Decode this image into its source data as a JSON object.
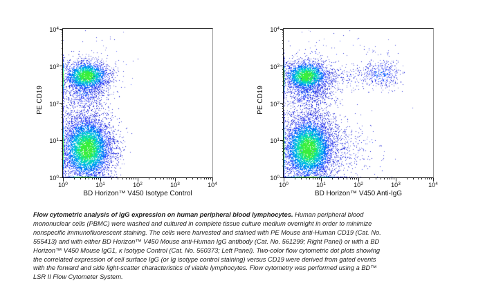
{
  "caption": {
    "title": "Flow cytometric analysis of IgG expression on human peripheral blood lymphocytes.",
    "body": " Human peripheral blood mononuclear cells (PBMC) were washed and cultured in complete tissue culture medium overnight in order to minimize nonspecific immunofluorescent staining. The cells were harvested and stained with PE Mouse anti-Human CD19 (Cat. No. 555413) and with either BD Horizon™ V450 Mouse anti-Human IgG antibody (Cat. No. 561299; Right Panel) or with a BD Horizon™ V450  Mouse IgG1, κ Isotype Control (Cat. No. 560373; Left Panel). Two-color flow cytometric dot plots showing the correlated expression of cell surface IgG (or Ig isotype control staining) versus CD19 were derived from gated events with the forward and side light-scatter characteristics of viable lymphocytes. Flow cytometry was performed using a BD™ LSR II Flow Cytometer System."
  },
  "chart_data": {
    "type": "scatter",
    "subtype": "flow-cytometry-density-dot-plot",
    "grid": false,
    "legend": false,
    "palette": {
      "density_ramp": [
        "#0009d0",
        "#2438ff",
        "#0077fa",
        "#00b8e8",
        "#0ce0a8",
        "#39ef3c"
      ],
      "axis_color": "#111111",
      "frame_right_color": "#9a9a9a"
    },
    "axis": {
      "scale": "log10",
      "x_range": [
        1,
        10000
      ],
      "y_range": [
        1,
        10000
      ],
      "tick_exponents": [
        0,
        1,
        2,
        3,
        4
      ],
      "tick_label_base": "10"
    },
    "plots": [
      {
        "id": "isotype-control",
        "panel": "Left Panel",
        "xlabel": "BD Horizon™ V450 Isotype Control",
        "ylabel": "PE CD19",
        "populations": [
          {
            "name": "inter-population-scatter",
            "n": 260,
            "cx": 0.5,
            "cy": 1.6,
            "sx": 0.3,
            "sy": 0.38,
            "peak": 0
          },
          {
            "name": "stray-events",
            "n": 18,
            "cx": 1.2,
            "cy": 2.9,
            "sx": 0.55,
            "sy": 0.55,
            "peak": 0
          },
          {
            "name": "upper-sparse",
            "n": 25,
            "cx": 0.8,
            "cy": 3.3,
            "sx": 0.45,
            "sy": 0.3,
            "peak": 0
          },
          {
            "name": "b-cell-lower-tail",
            "n": 650,
            "cx": 0.55,
            "cy": 2.33,
            "sx": 0.27,
            "sy": 0.27,
            "peak": 1
          },
          {
            "name": "b-tail-right",
            "n": 120,
            "cx": 0.9,
            "cy": 2.45,
            "sx": 0.3,
            "sy": 0.22,
            "peak": 0
          },
          {
            "name": "low-right-smear",
            "n": 200,
            "cx": 1.1,
            "cy": 0.85,
            "sx": 0.28,
            "sy": 0.4,
            "peak": 0
          },
          {
            "name": "cd19-neg-lymphocytes",
            "n": 6500,
            "cx": 0.63,
            "cy": 0.78,
            "sx": 0.33,
            "sy": 0.42,
            "peak": 5
          },
          {
            "name": "cd19-pos-b-cells",
            "n": 2600,
            "cx": 0.62,
            "cy": 2.74,
            "sx": 0.3,
            "sy": 0.2,
            "peak": 5
          },
          {
            "name": "axis-pileup-x0-b",
            "n": 320,
            "cx": -0.02,
            "cy": 2.7,
            "sx": 0.015,
            "sy": 0.25,
            "peak": 5
          },
          {
            "name": "axis-pileup-x0-lymph",
            "n": 480,
            "cx": -0.02,
            "cy": 0.78,
            "sx": 0.015,
            "sy": 0.4,
            "peak": 5
          },
          {
            "name": "axis-pileup-y0",
            "n": 260,
            "cx": 0.6,
            "cy": -0.02,
            "sx": 0.3,
            "sy": 0.015,
            "peak": 5
          }
        ]
      },
      {
        "id": "anti-igg",
        "panel": "Right Panel",
        "xlabel": "BD Horizon™ V450 Anti-IgG",
        "ylabel": "PE CD19",
        "populations": [
          {
            "name": "inter-population-scatter",
            "n": 300,
            "cx": 0.7,
            "cy": 1.65,
            "sx": 0.4,
            "sy": 0.4,
            "peak": 0
          },
          {
            "name": "upper-sparse",
            "n": 50,
            "cx": 1.0,
            "cy": 3.25,
            "sx": 0.55,
            "sy": 0.32,
            "peak": 0
          },
          {
            "name": "igg-upper-sparse",
            "n": 28,
            "cx": 2.5,
            "cy": 3.15,
            "sx": 0.35,
            "sy": 0.28,
            "peak": 0
          },
          {
            "name": "stray-events",
            "n": 15,
            "cx": 1.6,
            "cy": 3.6,
            "sx": 0.6,
            "sy": 0.25,
            "peak": 0
          },
          {
            "name": "b-cell-lower-tail",
            "n": 700,
            "cx": 0.6,
            "cy": 2.33,
            "sx": 0.28,
            "sy": 0.28,
            "peak": 1
          },
          {
            "name": "b-tail-right",
            "n": 260,
            "cx": 1.0,
            "cy": 2.45,
            "sx": 0.32,
            "sy": 0.25,
            "peak": 0
          },
          {
            "name": "bridge-to-igg",
            "n": 150,
            "cx": 1.75,
            "cy": 2.72,
            "sx": 0.45,
            "sy": 0.17,
            "peak": 0
          },
          {
            "name": "low-right-smear",
            "n": 500,
            "cx": 1.35,
            "cy": 0.8,
            "sx": 0.5,
            "sy": 0.45,
            "peak": 0
          },
          {
            "name": "far-low-sparse",
            "n": 45,
            "cx": 2.2,
            "cy": 0.6,
            "sx": 0.35,
            "sy": 0.45,
            "peak": 0
          },
          {
            "name": "cd19-neg-lymphocytes",
            "n": 6500,
            "cx": 0.65,
            "cy": 0.78,
            "sx": 0.33,
            "sy": 0.42,
            "peak": 5
          },
          {
            "name": "cd19-pos-b-cells",
            "n": 2600,
            "cx": 0.6,
            "cy": 2.74,
            "sx": 0.3,
            "sy": 0.2,
            "peak": 5
          },
          {
            "name": "igg-pos-b-cells",
            "n": 430,
            "cx": 2.62,
            "cy": 2.78,
            "sx": 0.26,
            "sy": 0.2,
            "peak": 1
          },
          {
            "name": "axis-pileup-x0-b",
            "n": 320,
            "cx": -0.02,
            "cy": 2.7,
            "sx": 0.015,
            "sy": 0.25,
            "peak": 5
          },
          {
            "name": "axis-pileup-x0-lymph",
            "n": 480,
            "cx": -0.02,
            "cy": 0.78,
            "sx": 0.015,
            "sy": 0.4,
            "peak": 5
          },
          {
            "name": "axis-pileup-y0",
            "n": 300,
            "cx": 0.7,
            "cy": -0.02,
            "sx": 0.45,
            "sy": 0.015,
            "peak": 5
          }
        ]
      }
    ]
  }
}
